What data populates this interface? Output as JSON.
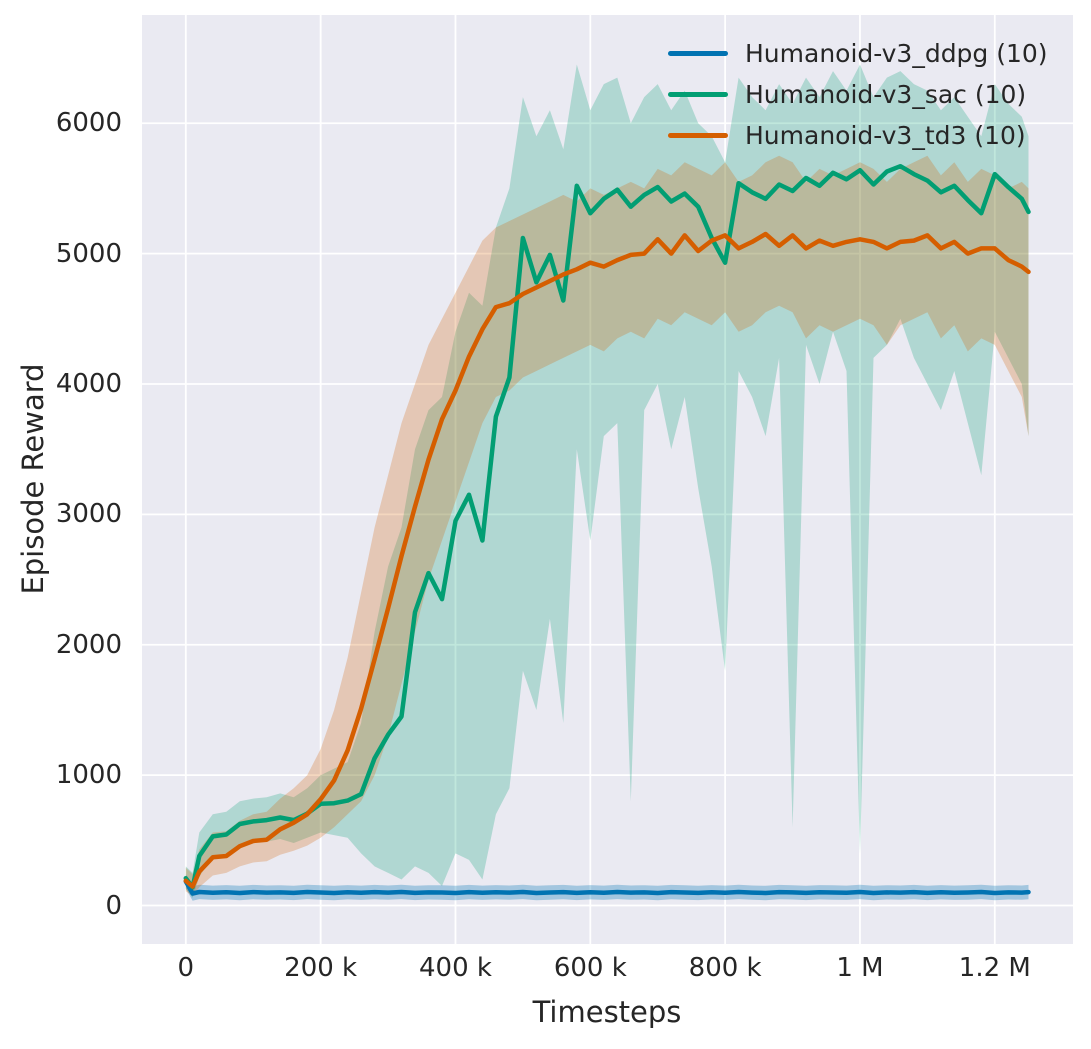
{
  "figure": {
    "background": "#ffffff",
    "plot_background": "#eaeaf2",
    "grid_color": "#ffffff",
    "text_color": "#262626"
  },
  "chart_data": {
    "type": "line",
    "title": "",
    "xlabel": "Timesteps",
    "ylabel": "Episode Reward",
    "xlim": [
      -65000,
      1316000
    ],
    "ylim": [
      -295,
      6830
    ],
    "grid": true,
    "legend_position": "upper right",
    "x_ticks": [
      {
        "value": 0,
        "label": "0"
      },
      {
        "value": 200000,
        "label": "200 k"
      },
      {
        "value": 400000,
        "label": "400 k"
      },
      {
        "value": 600000,
        "label": "600 k"
      },
      {
        "value": 800000,
        "label": "800 k"
      },
      {
        "value": 1000000,
        "label": "1 M"
      },
      {
        "value": 1200000,
        "label": "1.2 M"
      }
    ],
    "y_ticks": [
      {
        "value": 0,
        "label": "0"
      },
      {
        "value": 1000,
        "label": "1000"
      },
      {
        "value": 2000,
        "label": "2000"
      },
      {
        "value": 3000,
        "label": "3000"
      },
      {
        "value": 4000,
        "label": "4000"
      },
      {
        "value": 5000,
        "label": "5000"
      },
      {
        "value": 6000,
        "label": "6000"
      }
    ],
    "x": [
      0,
      10000,
      20000,
      40000,
      60000,
      80000,
      100000,
      120000,
      140000,
      160000,
      180000,
      200000,
      220000,
      240000,
      260000,
      280000,
      300000,
      320000,
      340000,
      360000,
      380000,
      400000,
      420000,
      440000,
      460000,
      480000,
      500000,
      520000,
      540000,
      560000,
      580000,
      600000,
      620000,
      640000,
      660000,
      680000,
      700000,
      720000,
      740000,
      760000,
      780000,
      800000,
      820000,
      840000,
      860000,
      880000,
      900000,
      920000,
      940000,
      960000,
      980000,
      1000000,
      1020000,
      1040000,
      1060000,
      1080000,
      1100000,
      1120000,
      1140000,
      1160000,
      1180000,
      1200000,
      1220000,
      1240000,
      1250000
    ],
    "series": [
      {
        "name": "ddpg",
        "label": "Humanoid-v3_ddpg (10)",
        "color": "#0173b2",
        "band_alpha": 0.3,
        "band_halfwidth": 55,
        "mean": [
          185,
          92,
          104,
          98,
          102,
          96,
          103,
          99,
          101,
          97,
          104,
          100,
          96,
          102,
          98,
          103,
          99,
          104,
          97,
          101,
          100,
          96,
          103,
          98,
          102,
          99,
          104,
          96,
          100,
          103,
          97,
          102,
          98,
          104,
          99,
          101,
          96,
          103,
          100,
          97,
          102,
          98,
          104,
          99,
          96,
          103,
          101,
          97,
          102,
          100,
          98,
          104,
          96,
          101,
          99,
          103,
          97,
          102,
          98,
          100,
          104,
          96,
          101,
          99,
          103
        ]
      },
      {
        "name": "sac",
        "label": "Humanoid-v3_sac (10)",
        "color": "#029e73",
        "band_alpha": 0.25,
        "mean": [
          210,
          140,
          380,
          530,
          545,
          625,
          645,
          655,
          675,
          655,
          705,
          780,
          785,
          805,
          855,
          1130,
          1310,
          1450,
          2250,
          2550,
          2350,
          2950,
          3150,
          2800,
          3750,
          4050,
          5120,
          4780,
          4990,
          4640,
          5520,
          5310,
          5420,
          5490,
          5360,
          5450,
          5510,
          5400,
          5460,
          5360,
          5120,
          4930,
          5540,
          5470,
          5420,
          5530,
          5480,
          5580,
          5520,
          5620,
          5570,
          5640,
          5530,
          5630,
          5670,
          5610,
          5560,
          5470,
          5520,
          5410,
          5310,
          5610,
          5510,
          5420,
          5320
        ],
        "lower": [
          130,
          60,
          220,
          380,
          400,
          470,
          480,
          490,
          510,
          480,
          520,
          560,
          540,
          520,
          400,
          300,
          250,
          200,
          300,
          250,
          150,
          400,
          350,
          200,
          700,
          900,
          1800,
          1500,
          2200,
          1400,
          3500,
          2800,
          3600,
          3700,
          800,
          3800,
          4000,
          3500,
          3900,
          3200,
          2600,
          1800,
          4100,
          3900,
          3600,
          4200,
          600,
          4300,
          4000,
          4400,
          4100,
          400,
          4200,
          4300,
          4500,
          4200,
          4000,
          3800,
          4100,
          3700,
          3300,
          4400,
          4200,
          4000,
          3600
        ],
        "upper": [
          300,
          250,
          560,
          700,
          720,
          800,
          820,
          830,
          860,
          830,
          900,
          1000,
          1050,
          1100,
          1400,
          2100,
          2600,
          2900,
          3500,
          3800,
          3900,
          4400,
          4700,
          4600,
          5200,
          5500,
          6200,
          5900,
          6100,
          5800,
          6450,
          6100,
          6300,
          6350,
          6000,
          6200,
          6300,
          6100,
          6250,
          6000,
          5900,
          5700,
          6350,
          6200,
          6100,
          6300,
          6150,
          6350,
          6200,
          6400,
          6250,
          6450,
          6200,
          6350,
          6400,
          6300,
          6250,
          6100,
          6200,
          6050,
          5900,
          6300,
          6150,
          6050,
          5900
        ]
      },
      {
        "name": "td3",
        "label": "Humanoid-v3_td3 (10)",
        "color": "#d55e00",
        "band_alpha": 0.25,
        "mean": [
          190,
          145,
          260,
          370,
          380,
          455,
          495,
          505,
          585,
          635,
          700,
          815,
          960,
          1190,
          1510,
          1890,
          2280,
          2680,
          3060,
          3420,
          3730,
          3950,
          4210,
          4420,
          4590,
          4620,
          4690,
          4740,
          4790,
          4840,
          4880,
          4930,
          4900,
          4950,
          4990,
          5000,
          5110,
          5000,
          5140,
          5020,
          5100,
          5140,
          5040,
          5090,
          5150,
          5060,
          5140,
          5040,
          5100,
          5060,
          5090,
          5110,
          5090,
          5040,
          5090,
          5100,
          5140,
          5040,
          5090,
          5000,
          5040,
          5040,
          4950,
          4900,
          4860
        ],
        "lower": [
          110,
          70,
          140,
          230,
          250,
          300,
          330,
          340,
          390,
          420,
          460,
          520,
          600,
          700,
          800,
          1000,
          1300,
          1700,
          2100,
          2500,
          2800,
          3100,
          3400,
          3700,
          3900,
          3950,
          4050,
          4100,
          4150,
          4200,
          4250,
          4300,
          4250,
          4350,
          4400,
          4350,
          4500,
          4450,
          4550,
          4500,
          4450,
          4550,
          4400,
          4450,
          4550,
          4600,
          4550,
          4350,
          4450,
          4400,
          4450,
          4500,
          4450,
          4300,
          4450,
          4500,
          4550,
          4350,
          4450,
          4250,
          4350,
          4300,
          4100,
          3900,
          3600
        ],
        "upper": [
          290,
          240,
          430,
          560,
          570,
          650,
          700,
          720,
          820,
          900,
          1000,
          1200,
          1500,
          1900,
          2400,
          2900,
          3300,
          3700,
          4000,
          4300,
          4500,
          4700,
          4900,
          5100,
          5200,
          5250,
          5300,
          5350,
          5400,
          5450,
          5400,
          5500,
          5450,
          5500,
          5550,
          5500,
          5650,
          5600,
          5700,
          5650,
          5600,
          5700,
          5550,
          5600,
          5700,
          5750,
          5700,
          5550,
          5650,
          5600,
          5650,
          5700,
          5650,
          5550,
          5650,
          5700,
          5750,
          5600,
          5700,
          5550,
          5650,
          5600,
          5500,
          5550,
          5500
        ]
      }
    ]
  }
}
